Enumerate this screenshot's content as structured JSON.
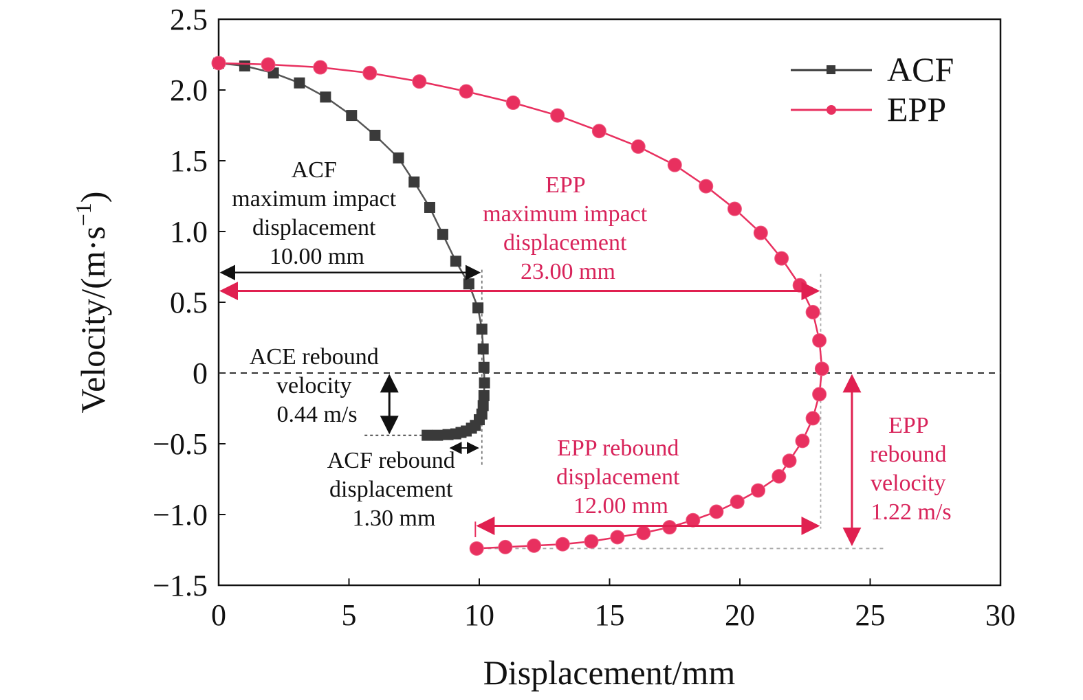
{
  "chart_data": {
    "type": "line",
    "xlabel": "Displacement/mm",
    "ylabel": "Velocity/(m·s",
    "ylabel_sup": "−1",
    "ylabel_end": ")",
    "xlim": [
      0,
      30
    ],
    "ylim": [
      -1.5,
      2.5
    ],
    "x_ticks": [
      0,
      5,
      10,
      15,
      20,
      25,
      30
    ],
    "x_tick_labels": [
      "0",
      "5",
      "10",
      "15",
      "20",
      "25",
      "30"
    ],
    "y_ticks": [
      -1.5,
      -1.0,
      -0.5,
      0,
      0.5,
      1.0,
      1.5,
      2.0,
      2.5
    ],
    "y_tick_labels": [
      "−1.5",
      "−1.0",
      "−0.5",
      "0",
      "0.5",
      "1.0",
      "1.5",
      "2.0",
      "2.5"
    ],
    "grid": false,
    "legend_position": "top-right",
    "colors": {
      "ACF": "#3a3a3a",
      "EPP": "#e8305f",
      "black_ann": "#111111",
      "red_ann": "#d8235a"
    },
    "series": [
      {
        "name": "ACF",
        "marker": "square",
        "x": [
          0,
          1.0,
          2.1,
          3.1,
          4.1,
          5.1,
          6.0,
          6.9,
          7.5,
          8.1,
          8.6,
          9.1,
          9.6,
          9.95,
          10.1,
          10.15,
          10.18,
          10.2,
          10.18,
          10.15,
          10.1,
          10.0,
          9.85,
          9.7,
          9.5,
          9.3,
          9.1,
          8.8,
          8.4,
          8.0
        ],
        "y": [
          2.19,
          2.17,
          2.12,
          2.05,
          1.95,
          1.82,
          1.68,
          1.52,
          1.35,
          1.17,
          0.98,
          0.79,
          0.63,
          0.46,
          0.31,
          0.17,
          0.04,
          -0.07,
          -0.16,
          -0.23,
          -0.29,
          -0.33,
          -0.37,
          -0.39,
          -0.41,
          -0.42,
          -0.43,
          -0.435,
          -0.44,
          -0.44
        ]
      },
      {
        "name": "EPP",
        "marker": "circle",
        "x": [
          0,
          1.9,
          3.9,
          5.8,
          7.7,
          9.5,
          11.3,
          13.0,
          14.6,
          16.1,
          17.5,
          18.7,
          19.8,
          20.8,
          21.6,
          22.3,
          22.8,
          23.05,
          23.15,
          23.05,
          22.8,
          22.4,
          21.9,
          21.5,
          20.7,
          19.9,
          19.1,
          18.2,
          17.3,
          16.3,
          15.3,
          14.3,
          13.2,
          12.1,
          11.0,
          9.9
        ],
        "y": [
          2.19,
          2.18,
          2.16,
          2.12,
          2.06,
          1.99,
          1.91,
          1.82,
          1.71,
          1.6,
          1.47,
          1.32,
          1.16,
          0.99,
          0.81,
          0.62,
          0.43,
          0.23,
          0.03,
          -0.15,
          -0.32,
          -0.48,
          -0.62,
          -0.73,
          -0.83,
          -0.91,
          -0.98,
          -1.04,
          -1.09,
          -1.13,
          -1.16,
          -1.19,
          -1.21,
          -1.22,
          -1.23,
          -1.24
        ]
      }
    ],
    "annotations": {
      "acf_max": [
        "ACF",
        "maximum impact",
        "displacement",
        "10.00 mm"
      ],
      "epp_max": [
        "EPP",
        "maximum impact",
        "displacement",
        "23.00 mm"
      ],
      "ace_rebound_velocity": [
        "ACE rebound",
        "velocity",
        "0.44 m/s"
      ],
      "acf_rebound_disp": [
        "ACF rebound",
        "displacement",
        "1.30 mm"
      ],
      "epp_rebound_disp": [
        "EPP rebound",
        "displacement",
        "12.00 mm"
      ],
      "epp_rebound_velocity": [
        "EPP",
        "rebound",
        "velocity",
        "1.22 m/s"
      ]
    }
  }
}
